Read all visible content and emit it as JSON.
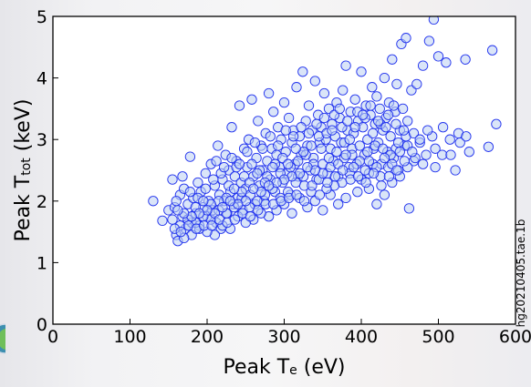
{
  "chart_data": {
    "type": "scatter",
    "xlabel_main": "Peak T",
    "xlabel_sub": "e",
    "xlabel_unit": " (eV)",
    "ylabel_main": "Peak T",
    "ylabel_sub": "tot",
    "ylabel_unit": " (keV)",
    "xlim": [
      0,
      600
    ],
    "ylim": [
      0,
      5
    ],
    "xticks": [
      "0",
      "100",
      "200",
      "300",
      "400",
      "500",
      "600"
    ],
    "yticks": [
      "0",
      "1",
      "2",
      "3",
      "4",
      "5"
    ],
    "grid": false,
    "marker_fill": "#bcd0f2",
    "marker_edge": "#2233ee",
    "annotation": "hg20210405.tae.1b",
    "points": [
      [
        130,
        2.0
      ],
      [
        142,
        1.68
      ],
      [
        150,
        1.85
      ],
      [
        155,
        2.35
      ],
      [
        158,
        1.9
      ],
      [
        160,
        1.45
      ],
      [
        162,
        1.35
      ],
      [
        165,
        2.1
      ],
      [
        168,
        1.75
      ],
      [
        170,
        2.2
      ],
      [
        172,
        1.55
      ],
      [
        175,
        1.95
      ],
      [
        178,
        2.72
      ],
      [
        180,
        1.65
      ],
      [
        182,
        2.05
      ],
      [
        185,
        1.8
      ],
      [
        188,
        2.3
      ],
      [
        190,
        1.6
      ],
      [
        192,
        2.15
      ],
      [
        195,
        1.9
      ],
      [
        198,
        2.45
      ],
      [
        200,
        1.75
      ],
      [
        202,
        2.0
      ],
      [
        205,
        2.6
      ],
      [
        207,
        1.85
      ],
      [
        210,
        2.25
      ],
      [
        212,
        1.65
      ],
      [
        214,
        2.9
      ],
      [
        216,
        2.1
      ],
      [
        218,
        1.55
      ],
      [
        220,
        2.35
      ],
      [
        222,
        2.0
      ],
      [
        224,
        2.75
      ],
      [
        226,
        1.8
      ],
      [
        228,
        2.5
      ],
      [
        230,
        2.15
      ],
      [
        232,
        3.2
      ],
      [
        234,
        1.95
      ],
      [
        236,
        2.4
      ],
      [
        238,
        2.65
      ],
      [
        240,
        2.05
      ],
      [
        242,
        3.55
      ],
      [
        244,
        2.3
      ],
      [
        246,
        1.85
      ],
      [
        248,
        2.85
      ],
      [
        250,
        2.2
      ],
      [
        252,
        2.55
      ],
      [
        254,
        3.0
      ],
      [
        256,
        2.1
      ],
      [
        258,
        3.65
      ],
      [
        260,
        2.4
      ],
      [
        262,
        1.95
      ],
      [
        264,
        2.7
      ],
      [
        266,
        3.3
      ],
      [
        268,
        2.25
      ],
      [
        270,
        2.9
      ],
      [
        272,
        2.5
      ],
      [
        274,
        2.0
      ],
      [
        276,
        3.1
      ],
      [
        278,
        2.65
      ],
      [
        280,
        3.75
      ],
      [
        282,
        2.35
      ],
      [
        284,
        2.85
      ],
      [
        286,
        3.45
      ],
      [
        288,
        2.15
      ],
      [
        290,
        2.75
      ],
      [
        292,
        3.2
      ],
      [
        294,
        2.55
      ],
      [
        296,
        3.0
      ],
      [
        298,
        2.3
      ],
      [
        300,
        3.6
      ],
      [
        302,
        2.8
      ],
      [
        304,
        2.45
      ],
      [
        306,
        3.35
      ],
      [
        308,
        2.1
      ],
      [
        310,
        2.95
      ],
      [
        312,
        3.15
      ],
      [
        314,
        2.6
      ],
      [
        316,
        3.85
      ],
      [
        318,
        2.4
      ],
      [
        320,
        3.05
      ],
      [
        322,
        2.75
      ],
      [
        324,
        4.1
      ],
      [
        326,
        2.25
      ],
      [
        328,
        3.3
      ],
      [
        330,
        2.9
      ],
      [
        332,
        3.55
      ],
      [
        334,
        2.5
      ],
      [
        336,
        3.15
      ],
      [
        338,
        2.7
      ],
      [
        340,
        3.95
      ],
      [
        342,
        2.35
      ],
      [
        344,
        3.4
      ],
      [
        346,
        2.95
      ],
      [
        348,
        3.2
      ],
      [
        350,
        2.6
      ],
      [
        352,
        3.75
      ],
      [
        354,
        3.0
      ],
      [
        356,
        2.45
      ],
      [
        358,
        3.5
      ],
      [
        360,
        2.85
      ],
      [
        362,
        3.25
      ],
      [
        364,
        2.65
      ],
      [
        366,
        3.05
      ],
      [
        368,
        3.6
      ],
      [
        370,
        2.4
      ],
      [
        372,
        3.35
      ],
      [
        374,
        2.95
      ],
      [
        376,
        3.8
      ],
      [
        378,
        2.7
      ],
      [
        380,
        4.2
      ],
      [
        382,
        3.15
      ],
      [
        384,
        2.55
      ],
      [
        386,
        3.45
      ],
      [
        388,
        2.85
      ],
      [
        390,
        3.1
      ],
      [
        392,
        3.65
      ],
      [
        394,
        2.6
      ],
      [
        396,
        3.3
      ],
      [
        398,
        2.9
      ],
      [
        400,
        4.1
      ],
      [
        402,
        3.2
      ],
      [
        404,
        2.75
      ],
      [
        406,
        3.55
      ],
      [
        408,
        3.0
      ],
      [
        410,
        2.45
      ],
      [
        412,
        3.4
      ],
      [
        414,
        3.85
      ],
      [
        416,
        2.85
      ],
      [
        418,
        3.25
      ],
      [
        420,
        3.7
      ],
      [
        422,
        2.95
      ],
      [
        424,
        3.5
      ],
      [
        426,
        2.6
      ],
      [
        428,
        3.15
      ],
      [
        430,
        4.0
      ],
      [
        432,
        3.35
      ],
      [
        434,
        2.8
      ],
      [
        436,
        3.6
      ],
      [
        438,
        3.05
      ],
      [
        440,
        4.3
      ],
      [
        442,
        2.7
      ],
      [
        444,
        3.45
      ],
      [
        446,
        3.9
      ],
      [
        448,
        2.5
      ],
      [
        450,
        3.15
      ],
      [
        452,
        4.55
      ],
      [
        454,
        3.5
      ],
      [
        456,
        2.9
      ],
      [
        458,
        4.65
      ],
      [
        460,
        3.3
      ],
      [
        462,
        1.88
      ],
      [
        465,
        3.8
      ],
      [
        468,
        2.65
      ],
      [
        472,
        3.9
      ],
      [
        476,
        2.95
      ],
      [
        480,
        4.2
      ],
      [
        484,
        2.75
      ],
      [
        488,
        4.6
      ],
      [
        492,
        3.05
      ],
      [
        494,
        4.95
      ],
      [
        496,
        2.85
      ],
      [
        500,
        4.35
      ],
      [
        505,
        2.75
      ],
      [
        510,
        4.25
      ],
      [
        515,
        3.0
      ],
      [
        522,
        2.5
      ],
      [
        528,
        2.95
      ],
      [
        535,
        4.3
      ],
      [
        540,
        2.8
      ],
      [
        565,
        2.88
      ],
      [
        570,
        4.45
      ],
      [
        575,
        3.25
      ],
      [
        430,
        2.1
      ],
      [
        440,
        2.3
      ],
      [
        420,
        1.95
      ],
      [
        410,
        2.2
      ],
      [
        395,
        2.15
      ],
      [
        380,
        2.05
      ],
      [
        370,
        1.95
      ],
      [
        360,
        2.1
      ],
      [
        350,
        1.85
      ],
      [
        340,
        2.0
      ],
      [
        330,
        1.9
      ],
      [
        320,
        2.05
      ],
      [
        310,
        1.8
      ],
      [
        300,
        1.95
      ],
      [
        290,
        1.85
      ],
      [
        280,
        1.75
      ],
      [
        270,
        1.8
      ],
      [
        260,
        1.7
      ],
      [
        250,
        1.65
      ],
      [
        240,
        1.75
      ],
      [
        230,
        1.55
      ],
      [
        220,
        1.6
      ],
      [
        210,
        1.45
      ],
      [
        200,
        1.5
      ],
      [
        190,
        1.55
      ],
      [
        180,
        1.45
      ],
      [
        170,
        1.4
      ],
      [
        460,
        2.55
      ],
      [
        450,
        2.4
      ],
      [
        470,
        2.7
      ],
      [
        480,
        2.6
      ],
      [
        445,
        2.85
      ],
      [
        435,
        2.55
      ],
      [
        425,
        2.4
      ],
      [
        415,
        2.6
      ],
      [
        405,
        2.5
      ],
      [
        385,
        2.45
      ],
      [
        375,
        2.3
      ],
      [
        365,
        2.25
      ],
      [
        355,
        2.2
      ],
      [
        345,
        2.35
      ],
      [
        335,
        2.15
      ],
      [
        325,
        2.4
      ],
      [
        315,
        2.3
      ],
      [
        305,
        2.15
      ],
      [
        295,
        2.05
      ],
      [
        285,
        2.2
      ],
      [
        275,
        2.1
      ],
      [
        265,
        2.0
      ],
      [
        255,
        1.9
      ],
      [
        245,
        2.05
      ],
      [
        235,
        1.9
      ],
      [
        225,
        1.8
      ],
      [
        215,
        1.85
      ],
      [
        205,
        1.7
      ],
      [
        195,
        1.75
      ],
      [
        185,
        1.65
      ],
      [
        175,
        1.7
      ],
      [
        165,
        1.6
      ],
      [
        155,
        1.7
      ],
      [
        160,
        2.0
      ],
      [
        168,
        2.4
      ],
      [
        178,
        2.15
      ],
      [
        188,
        2.05
      ],
      [
        198,
        2.2
      ],
      [
        208,
        2.35
      ],
      [
        218,
        2.45
      ],
      [
        228,
        2.25
      ],
      [
        238,
        2.55
      ],
      [
        248,
        2.4
      ],
      [
        258,
        2.6
      ],
      [
        268,
        2.5
      ],
      [
        278,
        2.4
      ],
      [
        288,
        2.6
      ],
      [
        298,
        2.7
      ],
      [
        308,
        2.55
      ],
      [
        318,
        2.65
      ],
      [
        328,
        2.75
      ],
      [
        338,
        2.6
      ],
      [
        348,
        2.85
      ],
      [
        358,
        2.7
      ],
      [
        368,
        2.8
      ],
      [
        378,
        2.95
      ],
      [
        388,
        2.75
      ],
      [
        398,
        2.65
      ],
      [
        408,
        2.8
      ],
      [
        418,
        2.9
      ],
      [
        428,
        2.85
      ],
      [
        438,
        2.75
      ],
      [
        448,
        2.95
      ],
      [
        458,
        3.05
      ],
      [
        468,
        3.1
      ],
      [
        345,
        3.05
      ],
      [
        355,
        3.1
      ],
      [
        365,
        3.4
      ],
      [
        375,
        3.2
      ],
      [
        385,
        3.0
      ],
      [
        395,
        3.45
      ],
      [
        405,
        3.35
      ],
      [
        415,
        3.1
      ],
      [
        425,
        3.25
      ],
      [
        435,
        3.4
      ],
      [
        445,
        3.25
      ],
      [
        455,
        3.15
      ],
      [
        335,
        2.9
      ],
      [
        325,
        2.8
      ],
      [
        315,
        2.85
      ],
      [
        305,
        2.6
      ],
      [
        295,
        2.45
      ],
      [
        285,
        2.55
      ],
      [
        275,
        2.3
      ],
      [
        265,
        2.45
      ],
      [
        255,
        2.3
      ],
      [
        245,
        2.15
      ],
      [
        235,
        2.2
      ],
      [
        225,
        2.05
      ],
      [
        215,
        2.0
      ],
      [
        205,
        1.95
      ],
      [
        195,
        2.0
      ],
      [
        185,
        1.9
      ],
      [
        212,
        2.65
      ],
      [
        222,
        2.55
      ],
      [
        232,
        2.7
      ],
      [
        242,
        2.6
      ],
      [
        252,
        2.8
      ],
      [
        262,
        2.95
      ],
      [
        272,
        2.85
      ],
      [
        282,
        3.05
      ],
      [
        292,
        2.9
      ],
      [
        302,
        3.15
      ],
      [
        312,
        3.05
      ],
      [
        322,
        3.2
      ],
      [
        332,
        3.1
      ],
      [
        342,
        3.25
      ],
      [
        352,
        3.35
      ],
      [
        362,
        3.15
      ],
      [
        372,
        3.5
      ],
      [
        382,
        3.3
      ],
      [
        392,
        3.2
      ],
      [
        402,
        3.4
      ],
      [
        412,
        3.55
      ],
      [
        422,
        3.3
      ],
      [
        432,
        3.2
      ],
      [
        442,
        3.55
      ],
      [
        360,
        2.55
      ],
      [
        370,
        2.6
      ],
      [
        380,
        2.75
      ],
      [
        390,
        2.55
      ],
      [
        400,
        2.35
      ],
      [
        410,
        2.65
      ],
      [
        420,
        2.55
      ],
      [
        430,
        2.7
      ],
      [
        440,
        2.6
      ],
      [
        450,
        2.8
      ],
      [
        460,
        2.9
      ],
      [
        350,
        2.45
      ],
      [
        340,
        2.5
      ],
      [
        330,
        2.55
      ],
      [
        320,
        2.45
      ],
      [
        310,
        2.4
      ],
      [
        300,
        2.35
      ],
      [
        290,
        2.3
      ],
      [
        280,
        2.25
      ],
      [
        270,
        2.15
      ],
      [
        260,
        2.2
      ],
      [
        250,
        2.0
      ],
      [
        240,
        1.95
      ],
      [
        230,
        2.0
      ],
      [
        220,
        1.9
      ],
      [
        210,
        1.8
      ],
      [
        200,
        1.85
      ],
      [
        190,
        1.8
      ],
      [
        180,
        1.75
      ],
      [
        170,
        1.8
      ],
      [
        162,
        1.85
      ],
      [
        158,
        1.55
      ],
      [
        166,
        1.5
      ],
      [
        176,
        1.6
      ],
      [
        186,
        1.55
      ],
      [
        196,
        1.6
      ],
      [
        206,
        1.6
      ],
      [
        216,
        1.7
      ],
      [
        226,
        1.65
      ],
      [
        236,
        1.7
      ],
      [
        246,
        1.8
      ],
      [
        256,
        1.75
      ],
      [
        266,
        1.85
      ],
      [
        276,
        1.95
      ],
      [
        286,
        1.95
      ],
      [
        296,
        2.0
      ],
      [
        306,
        2.05
      ],
      [
        316,
        2.1
      ],
      [
        326,
        2.0
      ],
      [
        336,
        2.25
      ],
      [
        346,
        2.1
      ],
      [
        356,
        2.3
      ],
      [
        366,
        2.4
      ],
      [
        376,
        2.5
      ],
      [
        386,
        2.35
      ],
      [
        396,
        2.4
      ],
      [
        406,
        2.3
      ],
      [
        416,
        2.45
      ],
      [
        426,
        2.25
      ],
      [
        436,
        2.4
      ],
      [
        446,
        2.5
      ],
      [
        456,
        2.65
      ],
      [
        466,
        2.8
      ],
      [
        476,
        3.0
      ],
      [
        486,
        3.15
      ],
      [
        496,
        2.55
      ],
      [
        506,
        3.2
      ],
      [
        516,
        2.75
      ],
      [
        526,
        3.1
      ],
      [
        536,
        3.05
      ]
    ]
  }
}
